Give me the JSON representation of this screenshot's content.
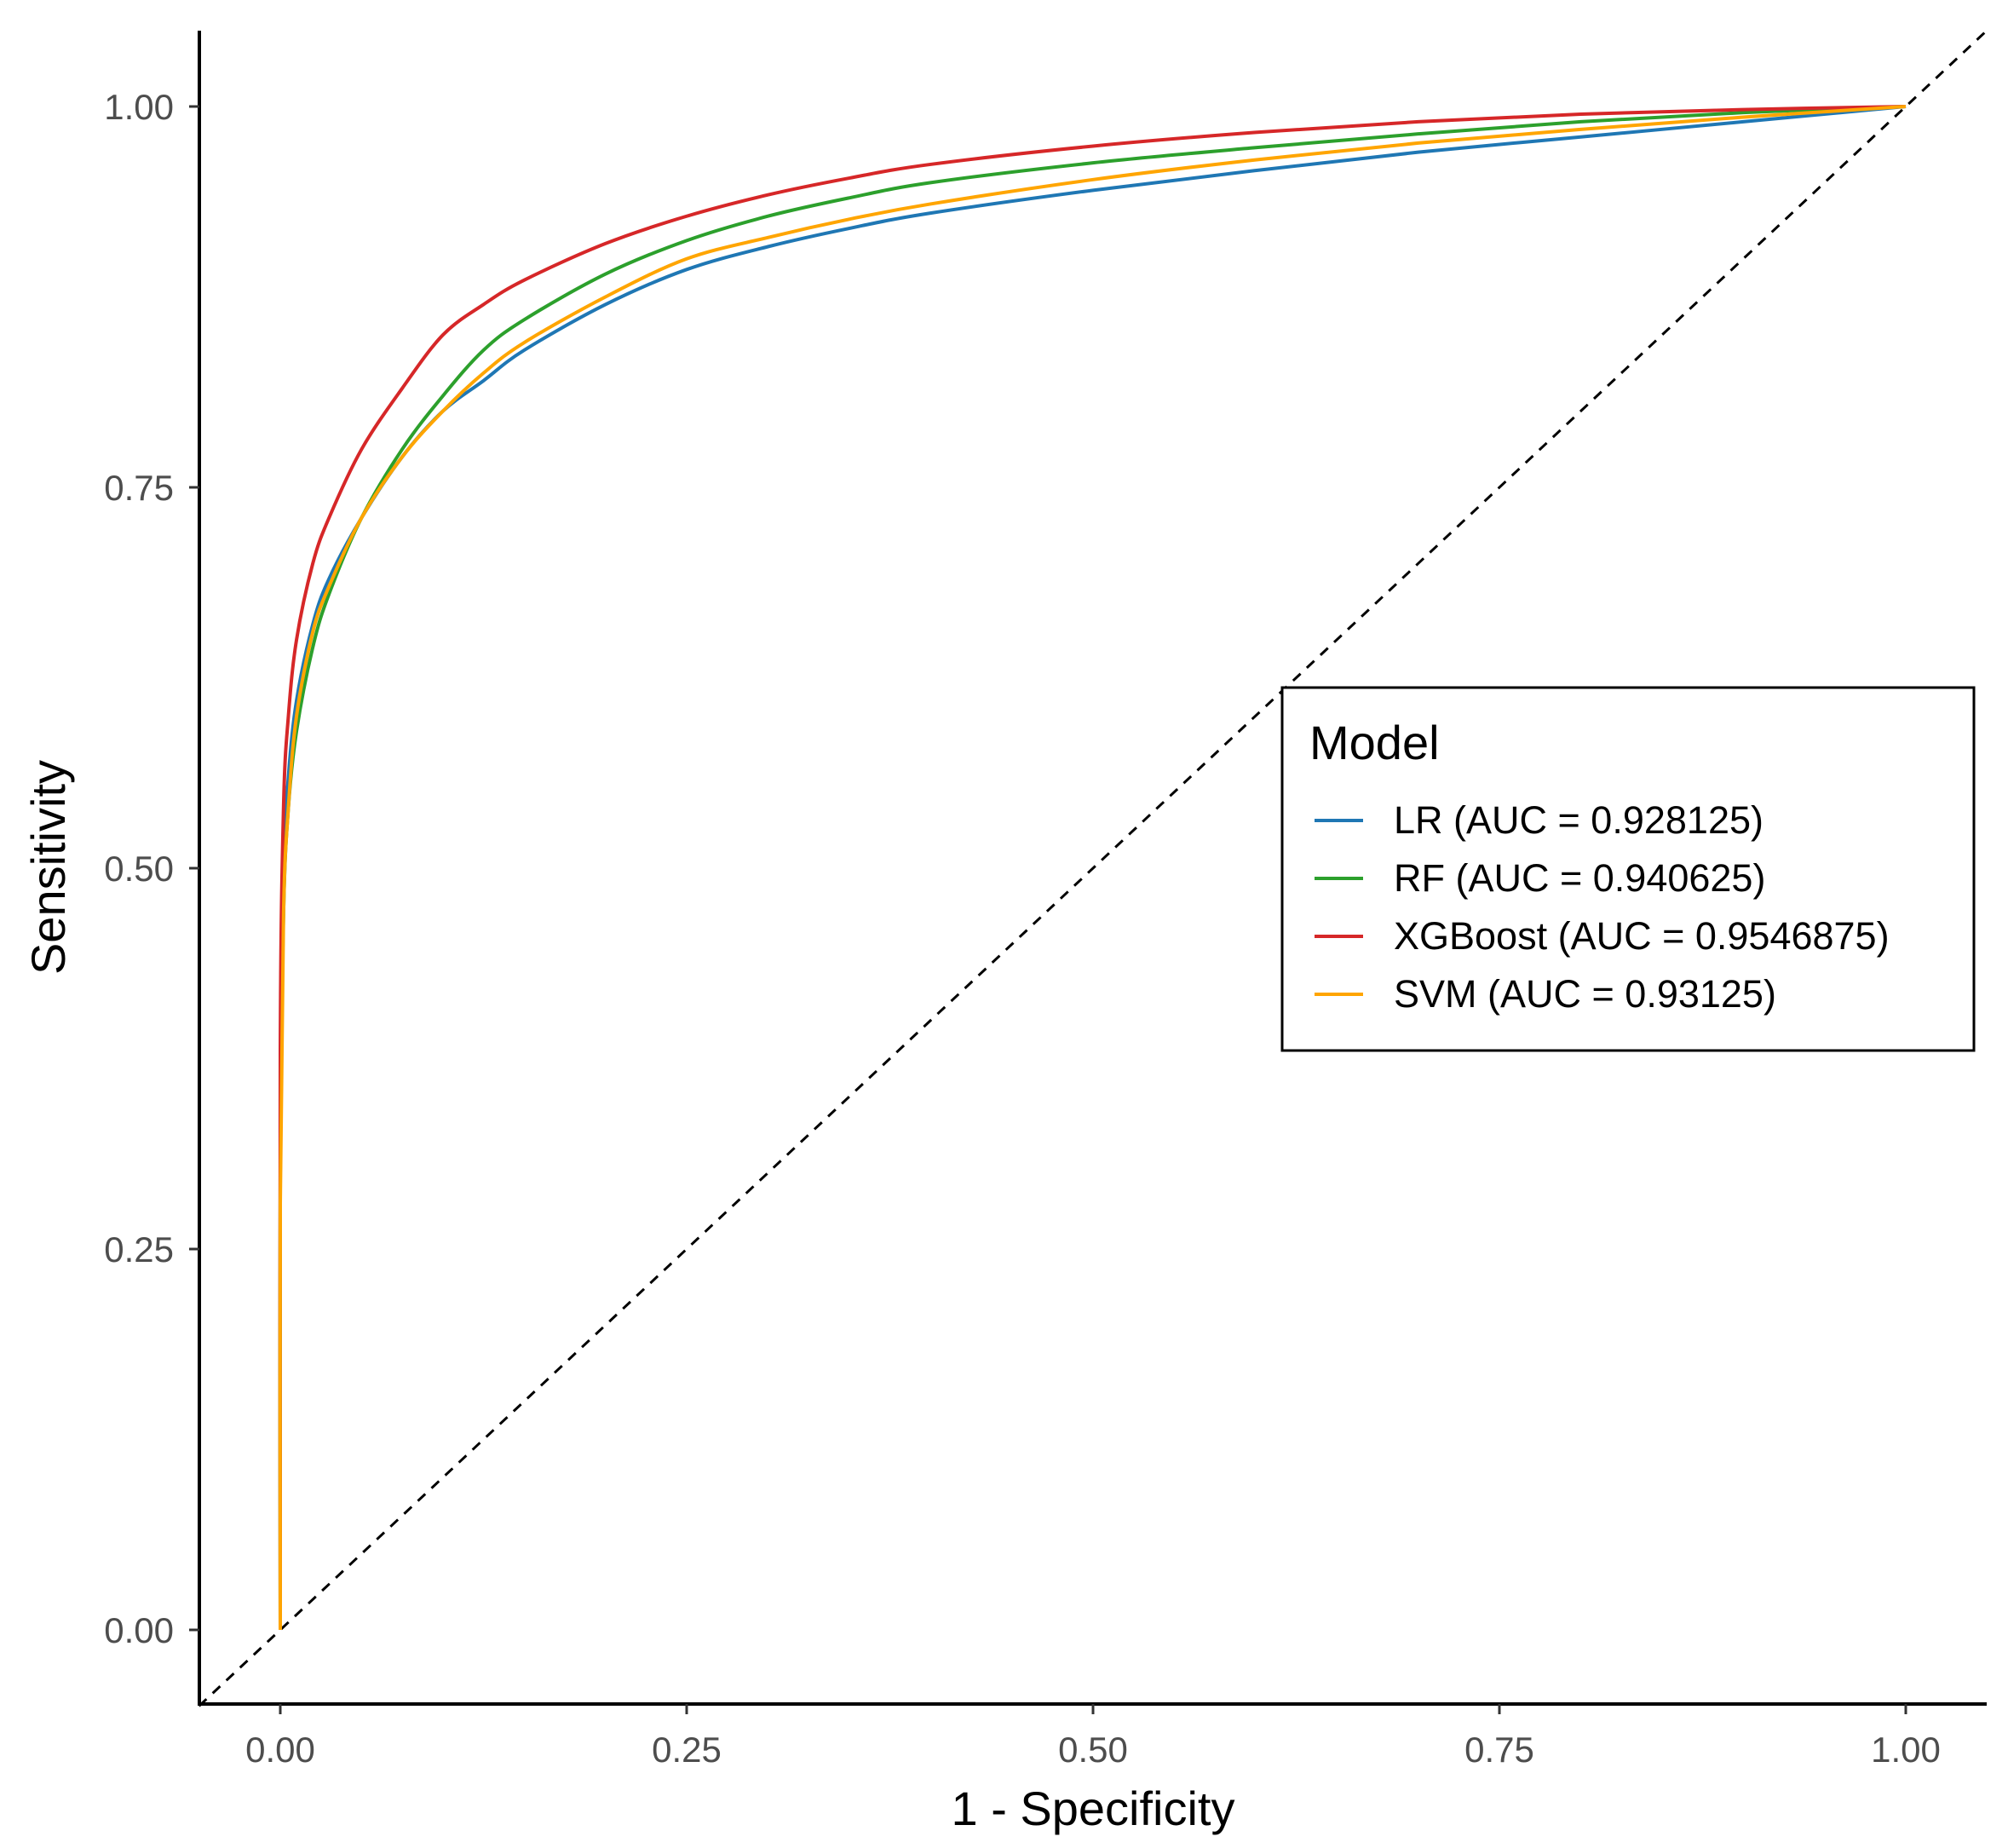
{
  "chart_data": {
    "type": "line",
    "title": "",
    "xlabel": "1 - Specificity",
    "ylabel": "Sensitivity",
    "xlim": [
      -0.05,
      1.05
    ],
    "ylim": [
      -0.05,
      1.05
    ],
    "x_ticks": [
      "0.00",
      "0.25",
      "0.50",
      "0.75",
      "1.00"
    ],
    "y_ticks": [
      "0.00",
      "0.25",
      "0.50",
      "0.75",
      "1.00"
    ],
    "grid": false,
    "legend": {
      "title": "Model",
      "position": "right"
    },
    "reference_line": {
      "type": "diagonal",
      "style": "dashed",
      "color": "#000000",
      "x": [
        -0.05,
        1.05
      ],
      "y": [
        -0.05,
        1.05
      ]
    },
    "series": [
      {
        "name": "LR (AUC = 0.928125)",
        "color": "#1f77b4",
        "x": [
          0,
          0,
          0.002,
          0.005,
          0.01,
          0.02,
          0.03,
          0.05,
          0.075,
          0.1,
          0.125,
          0.15,
          0.2,
          0.25,
          0.3,
          0.35,
          0.4,
          0.5,
          0.6,
          0.7,
          0.8,
          0.9,
          1.0
        ],
        "y": [
          0,
          0.3,
          0.5,
          0.56,
          0.61,
          0.66,
          0.69,
          0.73,
          0.77,
          0.8,
          0.82,
          0.84,
          0.87,
          0.893,
          0.908,
          0.92,
          0.93,
          0.945,
          0.958,
          0.97,
          0.98,
          0.99,
          1.0
        ]
      },
      {
        "name": "RF (AUC = 0.940625)",
        "color": "#2ca02c",
        "x": [
          0,
          0,
          0.002,
          0.005,
          0.01,
          0.02,
          0.03,
          0.05,
          0.075,
          0.1,
          0.125,
          0.15,
          0.2,
          0.25,
          0.3,
          0.35,
          0.4,
          0.5,
          0.6,
          0.7,
          0.8,
          0.9,
          1.0
        ],
        "y": [
          0,
          0.3,
          0.47,
          0.54,
          0.59,
          0.645,
          0.68,
          0.73,
          0.775,
          0.81,
          0.84,
          0.86,
          0.89,
          0.912,
          0.928,
          0.94,
          0.95,
          0.963,
          0.973,
          0.982,
          0.99,
          0.996,
          1.0
        ]
      },
      {
        "name": "XGBoost (AUC = 0.9546875)",
        "color": "#d62728",
        "x": [
          0,
          0,
          0.002,
          0.005,
          0.01,
          0.02,
          0.03,
          0.05,
          0.075,
          0.1,
          0.125,
          0.15,
          0.2,
          0.25,
          0.3,
          0.35,
          0.4,
          0.5,
          0.6,
          0.7,
          0.8,
          0.9,
          1.0
        ],
        "y": [
          0,
          0.38,
          0.54,
          0.6,
          0.65,
          0.7,
          0.73,
          0.775,
          0.815,
          0.85,
          0.87,
          0.886,
          0.91,
          0.928,
          0.942,
          0.953,
          0.962,
          0.974,
          0.983,
          0.99,
          0.995,
          0.998,
          1.0
        ]
      },
      {
        "name": "SVM (AUC = 0.93125)",
        "color": "#ffa500",
        "x": [
          0,
          0,
          0.002,
          0.005,
          0.01,
          0.02,
          0.03,
          0.05,
          0.075,
          0.1,
          0.125,
          0.15,
          0.2,
          0.25,
          0.3,
          0.35,
          0.4,
          0.5,
          0.6,
          0.7,
          0.8,
          0.9,
          1.0
        ],
        "y": [
          0,
          0.28,
          0.47,
          0.54,
          0.6,
          0.655,
          0.685,
          0.73,
          0.77,
          0.8,
          0.825,
          0.845,
          0.875,
          0.9,
          0.914,
          0.926,
          0.936,
          0.952,
          0.965,
          0.976,
          0.985,
          0.993,
          1.0
        ]
      }
    ]
  }
}
